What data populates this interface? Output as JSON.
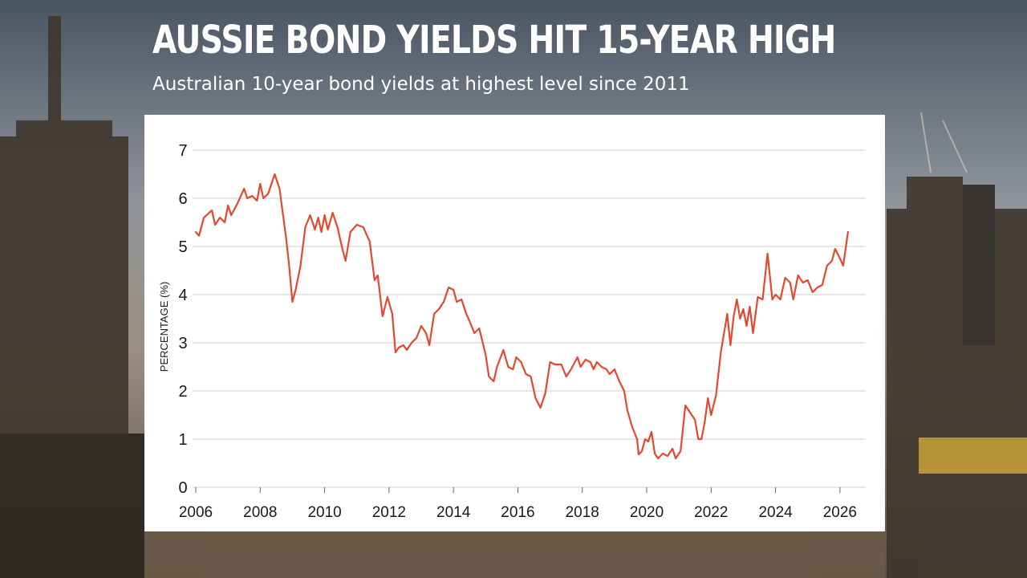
{
  "header": {
    "title": "AUSSIE BOND YIELDS HIT 15-YEAR HIGH",
    "subtitle": "Australian 10-year bond yields at highest level since 2011"
  },
  "colors": {
    "line": "#e5482c",
    "grid": "#cfcfcf",
    "card": "#ffffff",
    "text": "#1a1a1a"
  },
  "chart_data": {
    "type": "line",
    "title": "AUSSIE BOND YIELDS HIT 15-YEAR HIGH",
    "subtitle": "Australian 10-year bond yields at highest level since 2011",
    "xlabel": "",
    "ylabel": "PERCENTAGE (%)",
    "ylim": [
      0,
      7
    ],
    "xlim": [
      2005.9,
      2026.8
    ],
    "grid": true,
    "legend": "none",
    "x_ticks": [
      "2006",
      "2008",
      "2010",
      "2012",
      "2014",
      "2016",
      "2018",
      "2020",
      "2022",
      "2024",
      "2026"
    ],
    "y_ticks": [
      "0",
      "1",
      "2",
      "3",
      "4",
      "5",
      "6",
      "7"
    ],
    "series": [
      {
        "color": "#e5482c",
        "points": [
          [
            2006.0,
            5.3
          ],
          [
            2006.1,
            5.22
          ],
          [
            2006.25,
            5.6
          ],
          [
            2006.5,
            5.75
          ],
          [
            2006.6,
            5.45
          ],
          [
            2006.75,
            5.6
          ],
          [
            2006.9,
            5.5
          ],
          [
            2007.0,
            5.85
          ],
          [
            2007.1,
            5.65
          ],
          [
            2007.3,
            5.9
          ],
          [
            2007.5,
            6.2
          ],
          [
            2007.6,
            6.0
          ],
          [
            2007.75,
            6.05
          ],
          [
            2007.9,
            5.95
          ],
          [
            2008.0,
            6.3
          ],
          [
            2008.1,
            6.0
          ],
          [
            2008.25,
            6.1
          ],
          [
            2008.45,
            6.5
          ],
          [
            2008.6,
            6.2
          ],
          [
            2008.8,
            5.2
          ],
          [
            2008.9,
            4.6
          ],
          [
            2009.0,
            3.85
          ],
          [
            2009.1,
            4.1
          ],
          [
            2009.25,
            4.6
          ],
          [
            2009.4,
            5.4
          ],
          [
            2009.55,
            5.65
          ],
          [
            2009.7,
            5.35
          ],
          [
            2009.8,
            5.6
          ],
          [
            2009.9,
            5.3
          ],
          [
            2010.0,
            5.65
          ],
          [
            2010.1,
            5.35
          ],
          [
            2010.25,
            5.7
          ],
          [
            2010.4,
            5.4
          ],
          [
            2010.55,
            4.95
          ],
          [
            2010.65,
            4.7
          ],
          [
            2010.8,
            5.3
          ],
          [
            2011.0,
            5.45
          ],
          [
            2011.2,
            5.4
          ],
          [
            2011.4,
            5.1
          ],
          [
            2011.55,
            4.3
          ],
          [
            2011.65,
            4.4
          ],
          [
            2011.8,
            3.55
          ],
          [
            2011.95,
            3.95
          ],
          [
            2012.1,
            3.6
          ],
          [
            2012.2,
            2.8
          ],
          [
            2012.3,
            2.9
          ],
          [
            2012.45,
            2.95
          ],
          [
            2012.55,
            2.85
          ],
          [
            2012.7,
            3.0
          ],
          [
            2012.85,
            3.1
          ],
          [
            2013.0,
            3.35
          ],
          [
            2013.15,
            3.2
          ],
          [
            2013.25,
            2.95
          ],
          [
            2013.4,
            3.6
          ],
          [
            2013.55,
            3.7
          ],
          [
            2013.7,
            3.85
          ],
          [
            2013.85,
            4.15
          ],
          [
            2014.0,
            4.1
          ],
          [
            2014.1,
            3.85
          ],
          [
            2014.25,
            3.9
          ],
          [
            2014.4,
            3.6
          ],
          [
            2014.5,
            3.45
          ],
          [
            2014.65,
            3.2
          ],
          [
            2014.8,
            3.3
          ],
          [
            2015.0,
            2.75
          ],
          [
            2015.1,
            2.3
          ],
          [
            2015.25,
            2.2
          ],
          [
            2015.35,
            2.5
          ],
          [
            2015.55,
            2.85
          ],
          [
            2015.7,
            2.5
          ],
          [
            2015.85,
            2.45
          ],
          [
            2015.95,
            2.7
          ],
          [
            2016.1,
            2.6
          ],
          [
            2016.25,
            2.35
          ],
          [
            2016.4,
            2.3
          ],
          [
            2016.55,
            1.85
          ],
          [
            2016.7,
            1.65
          ],
          [
            2016.85,
            1.95
          ],
          [
            2017.0,
            2.6
          ],
          [
            2017.15,
            2.55
          ],
          [
            2017.35,
            2.55
          ],
          [
            2017.5,
            2.3
          ],
          [
            2017.65,
            2.45
          ],
          [
            2017.85,
            2.7
          ],
          [
            2017.95,
            2.5
          ],
          [
            2018.1,
            2.65
          ],
          [
            2018.25,
            2.6
          ],
          [
            2018.35,
            2.45
          ],
          [
            2018.45,
            2.6
          ],
          [
            2018.6,
            2.5
          ],
          [
            2018.75,
            2.45
          ],
          [
            2018.85,
            2.35
          ],
          [
            2019.0,
            2.45
          ],
          [
            2019.15,
            2.2
          ],
          [
            2019.3,
            2.0
          ],
          [
            2019.4,
            1.6
          ],
          [
            2019.55,
            1.25
          ],
          [
            2019.7,
            1.0
          ],
          [
            2019.75,
            0.68
          ],
          [
            2019.85,
            0.75
          ],
          [
            2019.95,
            1.0
          ],
          [
            2020.05,
            0.95
          ],
          [
            2020.15,
            1.15
          ],
          [
            2020.25,
            0.7
          ],
          [
            2020.35,
            0.6
          ],
          [
            2020.5,
            0.7
          ],
          [
            2020.65,
            0.65
          ],
          [
            2020.8,
            0.8
          ],
          [
            2020.9,
            0.6
          ],
          [
            2021.05,
            0.75
          ],
          [
            2021.2,
            1.7
          ],
          [
            2021.35,
            1.55
          ],
          [
            2021.5,
            1.4
          ],
          [
            2021.6,
            1.0
          ],
          [
            2021.7,
            1.0
          ],
          [
            2021.8,
            1.35
          ],
          [
            2021.9,
            1.85
          ],
          [
            2022.0,
            1.5
          ],
          [
            2022.15,
            1.9
          ],
          [
            2022.3,
            2.8
          ],
          [
            2022.5,
            3.6
          ],
          [
            2022.6,
            2.95
          ],
          [
            2022.7,
            3.55
          ],
          [
            2022.8,
            3.9
          ],
          [
            2022.9,
            3.5
          ],
          [
            2023.0,
            3.7
          ],
          [
            2023.1,
            3.35
          ],
          [
            2023.2,
            3.75
          ],
          [
            2023.3,
            3.2
          ],
          [
            2023.45,
            3.95
          ],
          [
            2023.6,
            3.9
          ],
          [
            2023.75,
            4.85
          ],
          [
            2023.9,
            3.9
          ],
          [
            2024.0,
            4.0
          ],
          [
            2024.15,
            3.9
          ],
          [
            2024.3,
            4.35
          ],
          [
            2024.45,
            4.25
          ],
          [
            2024.55,
            3.9
          ],
          [
            2024.7,
            4.4
          ],
          [
            2024.85,
            4.25
          ],
          [
            2025.0,
            4.3
          ],
          [
            2025.15,
            4.05
          ],
          [
            2025.3,
            4.15
          ],
          [
            2025.45,
            4.2
          ],
          [
            2025.6,
            4.6
          ],
          [
            2025.75,
            4.7
          ],
          [
            2025.85,
            4.95
          ],
          [
            2026.0,
            4.75
          ],
          [
            2026.1,
            4.6
          ],
          [
            2026.25,
            5.3
          ]
        ]
      }
    ]
  }
}
